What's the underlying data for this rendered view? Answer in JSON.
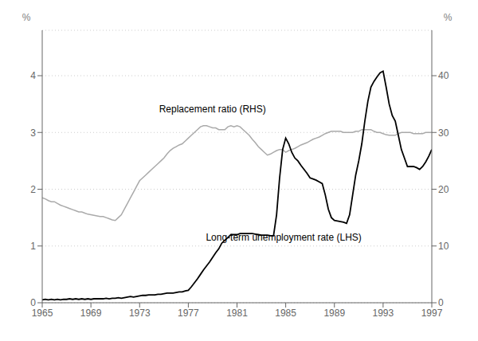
{
  "chart_data": {
    "type": "line",
    "x": [
      1965,
      1965.25,
      1965.5,
      1965.75,
      1966,
      1966.25,
      1966.5,
      1966.75,
      1967,
      1967.25,
      1967.5,
      1967.75,
      1968,
      1968.25,
      1968.5,
      1968.75,
      1969,
      1969.25,
      1969.5,
      1969.75,
      1970,
      1970.25,
      1970.5,
      1970.75,
      1971,
      1971.25,
      1971.5,
      1971.75,
      1972,
      1972.25,
      1972.5,
      1972.75,
      1973,
      1973.25,
      1973.5,
      1973.75,
      1974,
      1974.25,
      1974.5,
      1974.75,
      1975,
      1975.25,
      1975.5,
      1975.75,
      1976,
      1976.25,
      1976.5,
      1976.75,
      1977,
      1977.25,
      1977.5,
      1977.75,
      1978,
      1978.25,
      1978.5,
      1978.75,
      1979,
      1979.25,
      1979.5,
      1979.75,
      1980,
      1980.25,
      1980.5,
      1980.75,
      1981,
      1981.25,
      1981.5,
      1981.75,
      1982,
      1982.25,
      1982.5,
      1982.75,
      1983,
      1983.25,
      1983.5,
      1983.75,
      1984,
      1984.25,
      1984.5,
      1984.75,
      1985,
      1985.25,
      1985.5,
      1985.75,
      1986,
      1986.25,
      1986.5,
      1986.75,
      1987,
      1987.25,
      1987.5,
      1987.75,
      1988,
      1988.25,
      1988.5,
      1988.75,
      1989,
      1989.25,
      1989.5,
      1989.75,
      1990,
      1990.25,
      1990.5,
      1990.75,
      1991,
      1991.25,
      1991.5,
      1991.75,
      1992,
      1992.25,
      1992.5,
      1992.75,
      1993,
      1993.25,
      1993.5,
      1993.75,
      1994,
      1994.25,
      1994.5,
      1994.75,
      1995,
      1995.25,
      1995.5,
      1995.75,
      1996,
      1996.25,
      1996.5,
      1996.75,
      1997
    ],
    "series": [
      {
        "name": "Replacement ratio (RHS)",
        "color": "#aaaaaa",
        "axis": "y2",
        "values": [
          18.5,
          18.3,
          18.0,
          17.8,
          17.8,
          17.5,
          17.2,
          17.0,
          16.8,
          16.6,
          16.4,
          16.2,
          16.0,
          16.0,
          15.8,
          15.6,
          15.5,
          15.4,
          15.3,
          15.2,
          15.2,
          15.0,
          14.8,
          14.6,
          14.5,
          15.0,
          15.5,
          16.5,
          17.5,
          18.5,
          19.5,
          20.5,
          21.5,
          22.0,
          22.5,
          23.0,
          23.5,
          24.0,
          24.5,
          25.0,
          25.5,
          26.2,
          26.8,
          27.2,
          27.5,
          27.8,
          28.0,
          28.5,
          29.0,
          29.5,
          30.0,
          30.5,
          31.0,
          31.2,
          31.2,
          31.0,
          30.8,
          30.8,
          30.5,
          30.5,
          30.5,
          31.0,
          31.2,
          31.0,
          31.2,
          31.0,
          30.5,
          30.0,
          29.5,
          28.8,
          28.2,
          27.5,
          27.0,
          26.5,
          26.0,
          26.2,
          26.5,
          26.8,
          27.0,
          27.0,
          26.5,
          26.8,
          27.0,
          27.2,
          27.5,
          27.8,
          28.0,
          28.2,
          28.5,
          28.8,
          29.0,
          29.2,
          29.5,
          29.8,
          30.0,
          30.2,
          30.2,
          30.2,
          30.2,
          30.0,
          30.0,
          30.0,
          30.0,
          30.2,
          30.2,
          30.5,
          30.5,
          30.5,
          30.5,
          30.2,
          30.0,
          30.0,
          29.8,
          29.6,
          29.5,
          29.5,
          29.5,
          29.8,
          30.0,
          30.0,
          30.0,
          30.0,
          29.8,
          29.8,
          29.8,
          29.8,
          30.0,
          30.0,
          30.0
        ]
      },
      {
        "name": "Long-term unemployment rate (LHS)",
        "color": "#000000",
        "values": [
          0.05,
          0.06,
          0.05,
          0.06,
          0.05,
          0.06,
          0.05,
          0.06,
          0.06,
          0.07,
          0.06,
          0.07,
          0.06,
          0.07,
          0.06,
          0.07,
          0.06,
          0.07,
          0.07,
          0.07,
          0.07,
          0.08,
          0.07,
          0.08,
          0.08,
          0.09,
          0.08,
          0.09,
          0.1,
          0.11,
          0.1,
          0.11,
          0.12,
          0.13,
          0.13,
          0.14,
          0.14,
          0.14,
          0.15,
          0.15,
          0.16,
          0.17,
          0.17,
          0.17,
          0.18,
          0.19,
          0.19,
          0.21,
          0.22,
          0.28,
          0.35,
          0.42,
          0.5,
          0.58,
          0.65,
          0.72,
          0.8,
          0.88,
          0.95,
          1.05,
          1.1,
          1.15,
          1.2,
          1.2,
          1.2,
          1.22,
          1.22,
          1.22,
          1.22,
          1.22,
          1.21,
          1.2,
          1.19,
          1.19,
          1.19,
          1.18,
          1.18,
          1.55,
          2.2,
          2.7,
          2.9,
          2.8,
          2.65,
          2.55,
          2.5,
          2.42,
          2.35,
          2.28,
          2.2,
          2.18,
          2.16,
          2.13,
          2.1,
          1.9,
          1.65,
          1.5,
          1.45,
          1.44,
          1.43,
          1.42,
          1.4,
          1.55,
          1.9,
          2.25,
          2.5,
          2.8,
          3.2,
          3.55,
          3.8,
          3.9,
          3.98,
          4.05,
          4.08,
          3.8,
          3.5,
          3.3,
          3.2,
          2.95,
          2.7,
          2.55,
          2.4,
          2.4,
          2.4,
          2.38,
          2.35,
          2.4,
          2.48,
          2.58,
          2.7
        ]
      }
    ],
    "xlim": [
      1965,
      1997
    ],
    "xticks": [
      1965,
      1969,
      1973,
      1977,
      1981,
      1985,
      1989,
      1993,
      1997
    ],
    "ylim": [
      0,
      4.8
    ],
    "yticks": [
      0,
      1,
      2,
      3,
      4
    ],
    "y2lim": [
      0,
      48
    ],
    "y2ticks": [
      0,
      10,
      20,
      30,
      40
    ],
    "ylabel": "%",
    "y2label": "%",
    "grid": true
  }
}
